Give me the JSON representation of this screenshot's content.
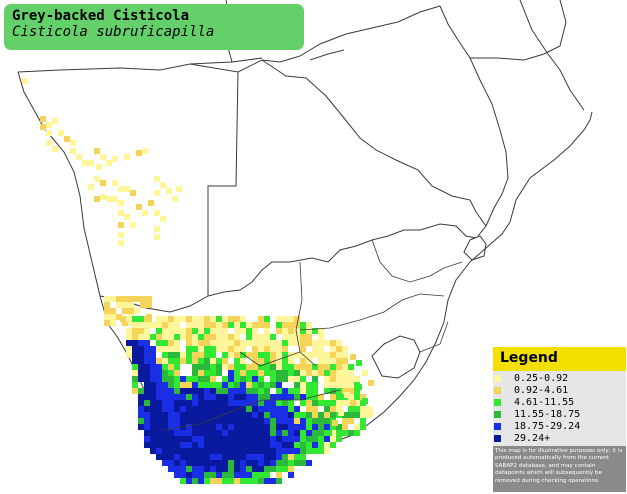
{
  "title": {
    "common_name": "Grey-backed Cisticola",
    "scientific_name": "Cisticola subruficapilla"
  },
  "legend": {
    "heading": "Legend",
    "classes": [
      {
        "label": "0.25-0.92",
        "color": "#fff59a"
      },
      {
        "label": "0.92-4.61",
        "color": "#f5d45a"
      },
      {
        "label": "4.61-11.55",
        "color": "#33e833"
      },
      {
        "label": "11.55-18.75",
        "color": "#2cb83a"
      },
      {
        "label": "18.75-29.24",
        "color": "#1a2ee6"
      },
      {
        "label": "29.24+",
        "color": "#0a1a9e"
      }
    ],
    "disclaimer": "This map is for illustrative purposes only; it is produced automatically from the current SABAP2 database, and may contain datapoints which will subsequently be removed during checking operations."
  },
  "map": {
    "land_color": "#ffffff",
    "border_color": "#404040"
  }
}
